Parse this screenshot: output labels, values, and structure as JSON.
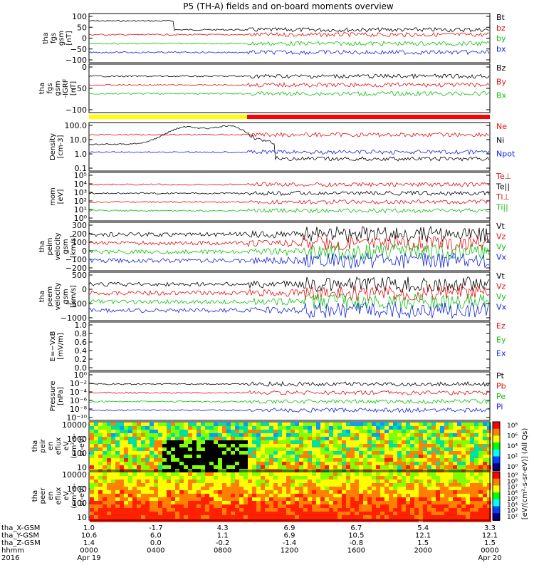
{
  "title": "P5 (TH-A) fields and on-board moments overview",
  "colors": {
    "black": "#000000",
    "red": "#e01010",
    "green": "#10c010",
    "blue": "#1020e0",
    "yellow": "#ffff00",
    "barred": "#ff0000"
  },
  "chart_data": [
    {
      "type": "line",
      "ylabel": [
        "tha",
        "fgs",
        "gsm",
        "[nT]"
      ],
      "ylim": [
        -100,
        100
      ],
      "yticks": [
        "100",
        "50",
        "0",
        "−50",
        "−100"
      ],
      "legend": [
        {
          "name": "Bt",
          "color": "black"
        },
        {
          "name": "bz",
          "color": "red"
        },
        {
          "name": "by",
          "color": "green"
        },
        {
          "name": "bx",
          "color": "blue"
        }
      ]
    },
    {
      "type": "line",
      "ylabel": [
        "tha",
        "fgs",
        "gsm",
        "-IGRF",
        "[nT]"
      ],
      "ylim": [
        -130,
        30
      ],
      "yticks": [
        "0",
        "−50",
        "−100"
      ],
      "legend": [
        {
          "name": "Bz",
          "color": "black"
        },
        {
          "name": "By",
          "color": "red"
        },
        {
          "name": "Bx",
          "color": "green"
        }
      ]
    },
    {
      "type": "line",
      "ylabel": [
        "Density",
        "[cm-3]"
      ],
      "scale": "log",
      "yticks": [
        "100.0",
        "10.0",
        "1.0",
        "0.1"
      ],
      "legend": [
        {
          "name": "Ne",
          "color": "red"
        },
        {
          "name": "Ni",
          "color": "black"
        },
        {
          "name": "Npot",
          "color": "blue"
        }
      ]
    },
    {
      "type": "line",
      "ylabel": [
        "mom",
        "[eV]"
      ],
      "scale": "log",
      "yticks": [
        "10⁵",
        "10⁴",
        "10³",
        "10²",
        "10¹",
        "10⁰"
      ],
      "legend": [
        {
          "name": "Te⊥",
          "color": "red"
        },
        {
          "name": "Te||",
          "color": "black"
        },
        {
          "name": "Ti⊥",
          "color": "red"
        },
        {
          "name": "Ti||",
          "color": "green"
        }
      ]
    },
    {
      "type": "line",
      "ylabel": [
        "tha",
        "peim",
        "velocity",
        "gsm",
        "[km/s]"
      ],
      "ylim": [
        -200,
        300
      ],
      "yticks": [
        "300",
        "200",
        "100",
        "0",
        "−100",
        "−200"
      ],
      "legend": [
        {
          "name": "Vt",
          "color": "black"
        },
        {
          "name": "Vz",
          "color": "red"
        },
        {
          "name": "Vy",
          "color": "green"
        },
        {
          "name": "Vx",
          "color": "blue"
        }
      ]
    },
    {
      "type": "line",
      "ylabel": [
        "tha",
        "peem",
        "velocity",
        "gsm",
        "[km/s]"
      ],
      "ylim": [
        -1000,
        500
      ],
      "yticks": [
        "500",
        "0",
        "−500",
        "−1000"
      ],
      "legend": [
        {
          "name": "Vt",
          "color": "black"
        },
        {
          "name": "Vz",
          "color": "red"
        },
        {
          "name": "Vy",
          "color": "green"
        },
        {
          "name": "Vx",
          "color": "blue"
        }
      ]
    },
    {
      "type": "line",
      "ylabel": [
        "E=−VxB",
        "[mV/m]"
      ],
      "ylim": [
        0,
        1
      ],
      "yticks": [
        "1.0",
        "0.8",
        "0.6",
        "0.4",
        "0.2",
        "0.0"
      ],
      "legend": [
        {
          "name": "Ez",
          "color": "red"
        },
        {
          "name": "Ey",
          "color": "green"
        },
        {
          "name": "Ex",
          "color": "blue"
        }
      ]
    },
    {
      "type": "line",
      "ylabel": [
        "Pressure",
        "[nPa]"
      ],
      "scale": "log",
      "yticks": [
        "10⁰",
        "10⁻²",
        "10⁻⁴",
        "10⁻⁶",
        "10⁻⁸",
        "10⁻¹⁰"
      ],
      "legend": [
        {
          "name": "Pt",
          "color": "black"
        },
        {
          "name": "Pb",
          "color": "red"
        },
        {
          "name": "Pe",
          "color": "green"
        },
        {
          "name": "Pi",
          "color": "blue"
        }
      ]
    },
    {
      "type": "heatmap",
      "ylabel": [
        "tha",
        "peir",
        "en",
        "eflux",
        "eV",
        "(cm²-s-",
        "sr-eV)"
      ],
      "yticks": [
        "10000",
        "1000",
        "100",
        "10"
      ],
      "colorbar": {
        "label": "[eV/(cm²-s-sr-eV)] (All Qs)",
        "ticks": [
          "10⁸",
          "10⁶",
          "10⁴",
          "10²",
          "10⁰"
        ]
      }
    },
    {
      "type": "heatmap",
      "ylabel": [
        "tha",
        "peer",
        "en",
        "eflux",
        "eV",
        "(cm²-s-",
        "sr-eV)"
      ],
      "yticks": [
        "10000",
        "1000",
        "100",
        "10"
      ],
      "colorbar": {
        "ticks": [
          "10⁹",
          "10⁸",
          "10⁷",
          "10⁶",
          "10⁵",
          "10⁴",
          "10³",
          "10²"
        ]
      }
    }
  ],
  "xaxis": {
    "rows": [
      {
        "label": "tha_X-GSM",
        "values": [
          "1.0",
          "-1.7",
          "4.3",
          "6.9",
          "6.7",
          "5.4",
          "3.3"
        ]
      },
      {
        "label": "tha_Y-GSM",
        "values": [
          "10.6",
          "6.0",
          "1.1",
          "6.9",
          "10.5",
          "12.1",
          "12.1"
        ]
      },
      {
        "label": "tha_Z-GSM",
        "values": [
          "1.4",
          "0.0",
          "-0.2",
          "-1.4",
          "-0.8",
          "1.5",
          "1.5"
        ]
      },
      {
        "label": "hhmm",
        "values": [
          "0000",
          "0400",
          "0800",
          "1200",
          "1600",
          "2000",
          "0000"
        ]
      },
      {
        "label": "2016",
        "values": [
          "Apr 19",
          "",
          "",
          "",
          "",
          "",
          "Apr 20"
        ]
      }
    ]
  }
}
